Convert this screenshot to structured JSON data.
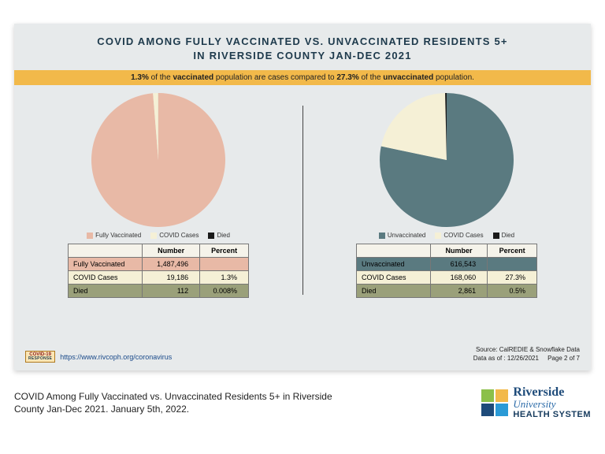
{
  "title_line1": "COVID AMONG FULLY VACCINATED VS. UNVACCINATED RESIDENTS 5+",
  "title_line2": "IN RIVERSIDE COUNTY JAN-DEC 2021",
  "banner": {
    "pct_vax": "1.3%",
    "mid1": " of the ",
    "vax_word": "vaccinated",
    "mid2": " population are cases compared to ",
    "pct_unvax": "27.3%",
    "mid3": " of the ",
    "unvax_word": "unvaccinated",
    "tail": " population."
  },
  "left": {
    "pie": {
      "type": "pie",
      "size": 170,
      "slices": [
        {
          "label": "Fully Vaccinated",
          "value": 1487496,
          "color": "#e8b9a6"
        },
        {
          "label": "COVID Cases",
          "value": 19186,
          "color": "#f5f0d6"
        },
        {
          "label": "Died",
          "value": 112,
          "color": "#1a1a1a"
        }
      ]
    },
    "legend": [
      {
        "label": "Fully Vaccinated",
        "color": "#e8b9a6"
      },
      {
        "label": "COVID Cases",
        "color": "#f5f0d6"
      },
      {
        "label": "Died",
        "color": "#1a1a1a"
      }
    ],
    "table": {
      "headers": [
        "",
        "Number",
        "Percent"
      ],
      "rows": [
        {
          "label": "Fully Vaccinated",
          "number": "1,487,496",
          "percent": "",
          "bg": "#e8b9a6"
        },
        {
          "label": "COVID Cases",
          "number": "19,186",
          "percent": "1.3%",
          "bg": "#f5f0d6"
        },
        {
          "label": "Died",
          "number": "112",
          "percent": "0.008%",
          "bg": "#9aa07a"
        }
      ]
    }
  },
  "right": {
    "pie": {
      "type": "pie",
      "size": 170,
      "slices": [
        {
          "label": "Unvaccinated",
          "value": 616543,
          "color": "#5a7a80"
        },
        {
          "label": "COVID Cases",
          "value": 168060,
          "color": "#f5f0d6"
        },
        {
          "label": "Died",
          "value": 2861,
          "color": "#1a1a1a"
        }
      ]
    },
    "legend": [
      {
        "label": "Unvaccinated",
        "color": "#5a7a80"
      },
      {
        "label": "COVID Cases",
        "color": "#f5f0d6"
      },
      {
        "label": "Died",
        "color": "#1a1a1a"
      }
    ],
    "table": {
      "headers": [
        "",
        "Number",
        "Percent"
      ],
      "rows": [
        {
          "label": "Unvaccinated",
          "number": "616,543",
          "percent": "",
          "bg": "#5a7a80"
        },
        {
          "label": "COVID Cases",
          "number": "168,060",
          "percent": "27.3%",
          "bg": "#f5f0d6"
        },
        {
          "label": "Died",
          "number": "2,861",
          "percent": "0.5%",
          "bg": "#9aa07a"
        }
      ]
    }
  },
  "footer": {
    "badge_top": "COVID-19",
    "badge_sub": "RESPONSE",
    "url": "https://www.rivcoph.org/coronavirus",
    "source_line1": "Source: CalREDIE & Snowflake Data",
    "source_line2": "Data as of : 12/26/2021",
    "page": "Page 2 of 7"
  },
  "caption": "COVID Among Fully Vaccinated vs. Unvaccinated Residents 5+ in Riverside County Jan-Dec 2021.  January 5th, 2022.",
  "logo": {
    "colors": [
      "#8cc04a",
      "#f2b94a",
      "#1e4b7a",
      "#2a9ad6"
    ],
    "line1": "Riverside",
    "line2": "University",
    "line3": "HEALTH SYSTEM"
  },
  "styling": {
    "card_bg": "#e7eaeb",
    "banner_bg": "#f2b94a",
    "title_color": "#1e3a4c",
    "divider_color": "#444444",
    "table_border": "#777777"
  }
}
